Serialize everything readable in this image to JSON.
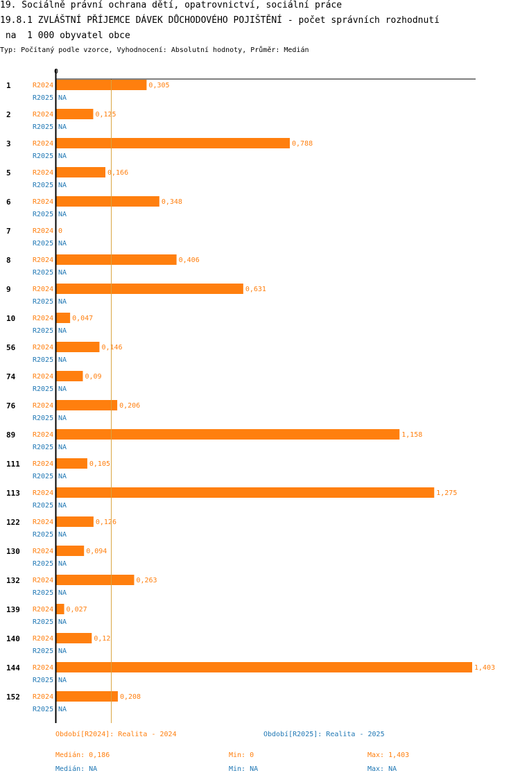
{
  "header": {
    "title_line1": "19. Sociálně právní ochrana dětí, opatrovnictví, sociální práce",
    "title_line2": "19.8.1 ZVLÁŠTNÍ PŘÍJEMCE DÁVEK DŮCHODOVÉHO POJIŠTĚNÍ - počet správních rozhodnutí",
    "title_line3": " na  1 000 obyvatel obce",
    "subtitle": "Typ: Počítaný podle vzorce, Vyhodnocení: Absolutní hodnoty, Průměr: Medián"
  },
  "colors": {
    "r2024": "#ff7f0e",
    "r2025": "#1f77b4",
    "median_line": "#d9a441"
  },
  "chart_data": {
    "type": "bar",
    "orientation": "horizontal",
    "x_zero_label": "0",
    "xlim": [
      0,
      1.403
    ],
    "median": 0.186,
    "categories": [
      "1",
      "2",
      "3",
      "5",
      "6",
      "7",
      "8",
      "9",
      "10",
      "56",
      "74",
      "76",
      "89",
      "111",
      "113",
      "122",
      "130",
      "132",
      "139",
      "140",
      "144",
      "152"
    ],
    "series": [
      {
        "name": "R2024",
        "values": [
          0.305,
          0.125,
          0.788,
          0.166,
          0.348,
          0,
          0.406,
          0.631,
          0.047,
          0.146,
          0.09,
          0.206,
          1.158,
          0.105,
          1.275,
          0.126,
          0.094,
          0.263,
          0.027,
          0.12,
          1.403,
          0.208
        ],
        "value_labels": [
          "0,305",
          "0,125",
          "0,788",
          "0,166",
          "0,348",
          "0",
          "0,406",
          "0,631",
          "0,047",
          "0,146",
          "0,09",
          "0,206",
          "1,158",
          "0,105",
          "1,275",
          "0,126",
          "0,094",
          "0,263",
          "0,027",
          "0,12",
          "1,403",
          "0,208"
        ]
      },
      {
        "name": "R2025",
        "values": [
          null,
          null,
          null,
          null,
          null,
          null,
          null,
          null,
          null,
          null,
          null,
          null,
          null,
          null,
          null,
          null,
          null,
          null,
          null,
          null,
          null,
          null
        ],
        "value_labels": [
          "NA",
          "NA",
          "NA",
          "NA",
          "NA",
          "NA",
          "NA",
          "NA",
          "NA",
          "NA",
          "NA",
          "NA",
          "NA",
          "NA",
          "NA",
          "NA",
          "NA",
          "NA",
          "NA",
          "NA",
          "NA",
          "NA"
        ]
      }
    ]
  },
  "legend": {
    "period_2024": "Období[R2024]: Realita - 2024",
    "period_2025": "Období[R2025]: Realita - 2025",
    "median_2024": "Medián: 0,186",
    "min_2024": "Min: 0",
    "max_2024": "Max: 1,403",
    "median_2025": "Medián: NA",
    "min_2025": "Min: NA",
    "max_2025": "Max: NA"
  }
}
